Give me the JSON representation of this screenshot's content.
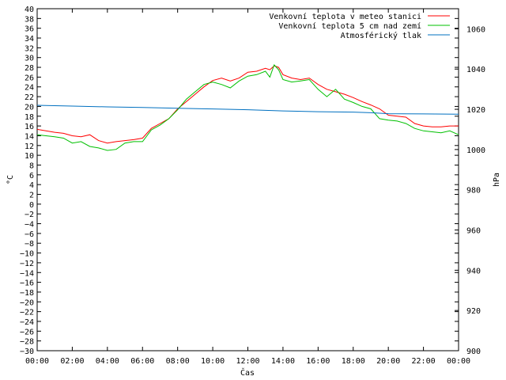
{
  "chart_data": {
    "type": "line",
    "xlabel": "Čas",
    "ylabel": "°C",
    "y2label": "hPa",
    "x_ticks": [
      "00:00",
      "02:00",
      "04:00",
      "06:00",
      "08:00",
      "10:00",
      "12:00",
      "14:00",
      "16:00",
      "18:00",
      "20:00",
      "22:00",
      "00:00"
    ],
    "x_range_hours": [
      0,
      24
    ],
    "ylim": [
      -30,
      40
    ],
    "ytick_step": 2,
    "y2lim": [
      900,
      1070
    ],
    "y2tick_step": 20,
    "legend_position": "top-right",
    "grid": false,
    "series": [
      {
        "name": "Venkovní teplota v meteo stanici",
        "axis": "left",
        "color": "#ff0000",
        "x": [
          0,
          0.5,
          1,
          1.5,
          2,
          2.5,
          3,
          3.5,
          4,
          4.5,
          5,
          5.5,
          6,
          6.5,
          7,
          7.5,
          8,
          8.5,
          9,
          9.5,
          10,
          10.5,
          11,
          11.5,
          12,
          12.5,
          13,
          13.25,
          13.5,
          13.75,
          14,
          14.5,
          15,
          15.5,
          16,
          16.5,
          17,
          17.5,
          18,
          18.5,
          19,
          19.5,
          20,
          20.5,
          21,
          21.5,
          22,
          22.5,
          23,
          23.5,
          24
        ],
        "values": [
          15.3,
          15.0,
          14.7,
          14.5,
          14.0,
          13.8,
          14.2,
          13.0,
          12.5,
          12.8,
          13.0,
          13.2,
          13.5,
          15.5,
          16.5,
          17.5,
          19.5,
          21.0,
          22.5,
          24.0,
          25.3,
          25.8,
          25.2,
          25.8,
          27.0,
          27.2,
          27.8,
          27.5,
          28.3,
          28.0,
          26.5,
          25.8,
          25.5,
          25.8,
          24.5,
          23.5,
          23.0,
          22.5,
          21.8,
          21.0,
          20.3,
          19.5,
          18.2,
          18.0,
          17.8,
          16.5,
          16.0,
          15.8,
          15.8,
          16.0,
          16.0
        ]
      },
      {
        "name": "Venkovní teplota 5 cm nad zemí",
        "axis": "left",
        "color": "#00c000",
        "x": [
          0,
          0.5,
          1,
          1.5,
          2,
          2.5,
          3,
          3.5,
          4,
          4.5,
          5,
          5.5,
          6,
          6.5,
          7,
          7.5,
          8,
          8.5,
          9,
          9.5,
          10,
          10.5,
          11,
          11.5,
          12,
          12.5,
          13,
          13.25,
          13.5,
          13.75,
          14,
          14.5,
          15,
          15.5,
          16,
          16.5,
          17,
          17.5,
          18,
          18.5,
          19,
          19.5,
          20,
          20.5,
          21,
          21.5,
          22,
          22.5,
          23,
          23.5,
          24
        ],
        "values": [
          14.2,
          14.0,
          13.8,
          13.5,
          12.5,
          12.8,
          11.8,
          11.5,
          11.0,
          11.2,
          12.5,
          12.8,
          12.8,
          15.2,
          16.2,
          17.5,
          19.3,
          21.5,
          23.0,
          24.5,
          25.0,
          24.5,
          23.8,
          25.2,
          26.2,
          26.5,
          27.2,
          26.0,
          28.5,
          27.5,
          25.5,
          25.0,
          25.2,
          25.5,
          23.5,
          22.0,
          23.5,
          21.5,
          20.8,
          20.0,
          19.5,
          17.5,
          17.2,
          17.0,
          16.5,
          15.5,
          15.0,
          14.8,
          14.6,
          15.0,
          14.2
        ]
      },
      {
        "name": "Atmosférický tlak",
        "axis": "right",
        "color": "#0070c0",
        "x": [
          0,
          2,
          4,
          6,
          8,
          10,
          12,
          14,
          16,
          18,
          19,
          20,
          22,
          24
        ],
        "values": [
          1022.0,
          1021.6,
          1021.2,
          1020.9,
          1020.5,
          1020.2,
          1019.8,
          1019.2,
          1018.8,
          1018.6,
          1018.3,
          1017.8,
          1017.7,
          1017.6
        ]
      }
    ]
  }
}
